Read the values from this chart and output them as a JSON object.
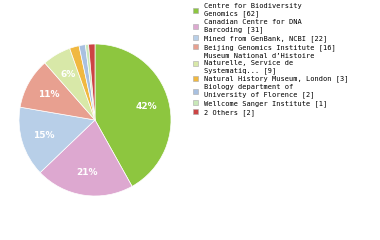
{
  "labels": [
    "Centre for Biodiversity\nGenomics [62]",
    "Canadian Centre for DNA\nBarcoding [31]",
    "Mined from GenBank, NCBI [22]",
    "Beijing Genomics Institute [16]",
    "Museum National d’Histoire\nNaturelle, Service de\nSystematiq... [9]",
    "Natural History Museum, London [3]",
    "Biology department of\nUniversity of Florence [2]",
    "Wellcome Sanger Institute [1]",
    "2 Others [2]"
  ],
  "values": [
    62,
    31,
    22,
    16,
    9,
    3,
    2,
    1,
    2
  ],
  "colors": [
    "#8dc63f",
    "#dda8d0",
    "#b8cfe8",
    "#e8a090",
    "#d8e8a8",
    "#f0b840",
    "#a8c0e0",
    "#c8e8b8",
    "#cc4444"
  ],
  "background_color": "#ffffff",
  "pct_threshold": 5.5
}
